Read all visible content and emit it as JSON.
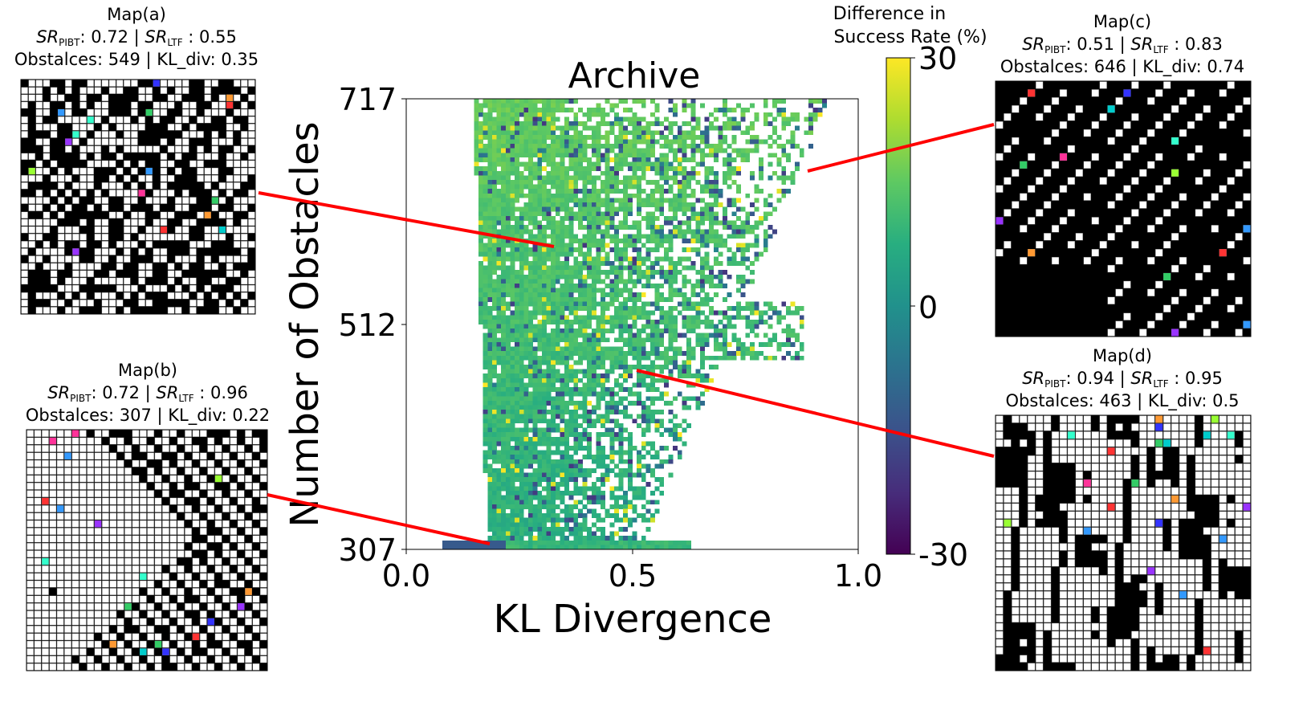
{
  "chart_data": {
    "type": "heatmap",
    "title": "Archive",
    "xlabel": "KL Divergence",
    "ylabel": "Number of Obstacles",
    "xlim": [
      0.0,
      1.0
    ],
    "ylim": [
      307,
      717
    ],
    "xticks": [
      "0.0",
      "0.5",
      "1.0"
    ],
    "yticks": [
      "307",
      "512",
      "717"
    ],
    "colorbar": {
      "label_line1": "Difference in",
      "label_line2": "Success Rate (%)",
      "range": [
        -30,
        30
      ],
      "ticks": [
        "30",
        "0",
        "-30"
      ],
      "colormap": "viridis"
    },
    "annotated_maps": [
      {
        "title": "Map(a)",
        "sr_pibt_value": "0.72",
        "sr_ltf_value": "0.55",
        "obstacles": 549,
        "kl_div": 0.35,
        "line3": "Obstalces: 549 | KL_div: 0.35"
      },
      {
        "title": "Map(b)",
        "sr_pibt_value": "0.72",
        "sr_ltf_value": "0.96",
        "obstacles": 307,
        "kl_div": 0.22,
        "line3": "Obstalces: 307 | KL_div: 0.22"
      },
      {
        "title": "Map(c)",
        "sr_pibt_value": "0.51",
        "sr_ltf_value": "0.83",
        "obstacles": 646,
        "kl_div": 0.74,
        "line3": "Obstalces: 646 | KL_div: 0.74"
      },
      {
        "title": "Map(d)",
        "sr_pibt_value": "0.94",
        "sr_ltf_value": "0.95",
        "obstacles": 463,
        "kl_div": 0.5,
        "line3": "Obstalces: 463 | KL_div: 0.5"
      }
    ],
    "sr_labels": {
      "sr": "SR",
      "pibt": "PIBT",
      "ltf": "LTF",
      "sep": " | "
    }
  },
  "colors": {
    "connector": "#ff0000",
    "obstacle": "#000000",
    "free_cell": "#ffffff",
    "grid": "#555555"
  }
}
